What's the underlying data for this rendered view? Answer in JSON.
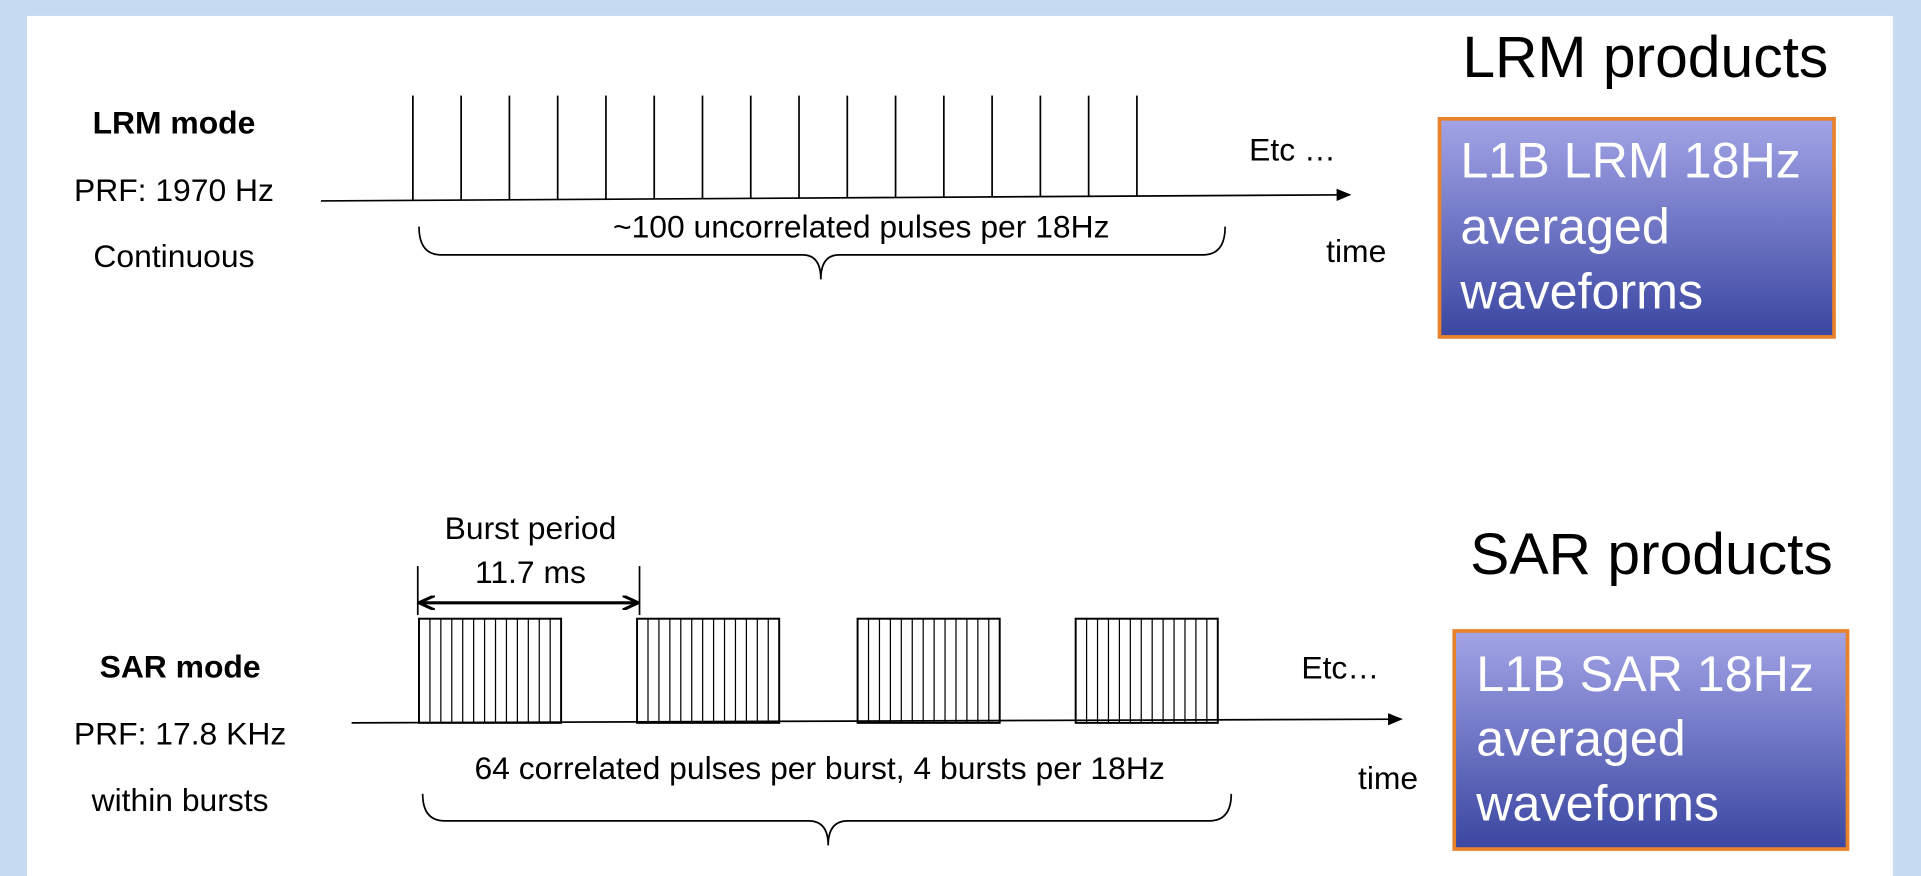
{
  "lrm": {
    "mode_title": "LRM mode",
    "prf": "PRF: 1970 Hz",
    "timing": "Continuous",
    "etc": "Etc …",
    "axis_label": "time",
    "brace_label": "~100 uncorrelated pulses per 18Hz",
    "products_title": "LRM products",
    "product_box": [
      "L1B LRM 18Hz",
      "averaged",
      "waveforms"
    ]
  },
  "sar": {
    "mode_title": "SAR mode",
    "prf": "PRF: 17.8 KHz",
    "timing": "within bursts",
    "burst_label": [
      "Burst period",
      "11.7 ms"
    ],
    "etc": "Etc…",
    "axis_label": "time",
    "brace_label": "64 correlated pulses per burst, 4 bursts per 18Hz",
    "products_title": "SAR products",
    "product_box": [
      "L1B SAR 18Hz",
      "averaged",
      "waveforms"
    ]
  }
}
